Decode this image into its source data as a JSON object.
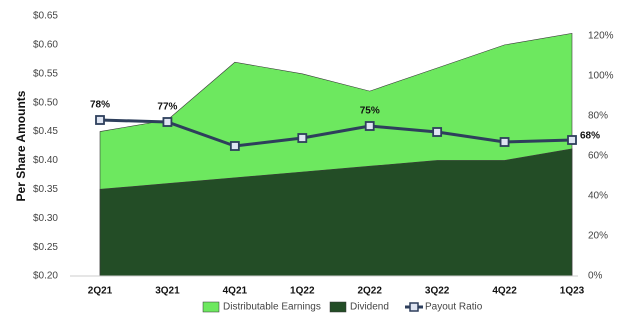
{
  "chart_data": {
    "type": "area",
    "y_label": "Per Share Amounts",
    "categories": [
      "2Q21",
      "3Q21",
      "4Q21",
      "1Q22",
      "2Q22",
      "3Q22",
      "4Q22",
      "1Q23"
    ],
    "series": [
      {
        "name": "Distributable Earnings",
        "type": "area",
        "color": "#6de85f",
        "values": [
          0.45,
          0.47,
          0.57,
          0.55,
          0.52,
          0.56,
          0.6,
          0.62
        ]
      },
      {
        "name": "Dividend",
        "type": "area",
        "color": "#234d26",
        "values": [
          0.35,
          0.36,
          0.37,
          0.38,
          0.39,
          0.4,
          0.4,
          0.42
        ]
      },
      {
        "name": "Payout Ratio",
        "type": "line",
        "axis": "y2",
        "color": "#2e3f5c",
        "values": [
          78,
          77,
          65,
          69,
          75,
          72,
          67,
          68
        ],
        "value_labels": [
          "78%",
          "77%",
          null,
          null,
          "75%",
          null,
          null,
          "68%"
        ]
      }
    ],
    "ylim": [
      0.2,
      0.65
    ],
    "yticks": [
      {
        "value": 0.2,
        "label": "$0.20"
      },
      {
        "value": 0.25,
        "label": "$0.25"
      },
      {
        "value": 0.3,
        "label": "$0.30"
      },
      {
        "value": 0.35,
        "label": "$0.35"
      },
      {
        "value": 0.4,
        "label": "$0.40"
      },
      {
        "value": 0.45,
        "label": "$0.45"
      },
      {
        "value": 0.5,
        "label": "$0.50"
      },
      {
        "value": 0.55,
        "label": "$0.55"
      },
      {
        "value": 0.6,
        "label": "$0.60"
      },
      {
        "value": 0.65,
        "label": "$0.65"
      }
    ],
    "y2lim": [
      0,
      130
    ],
    "y2ticks": [
      {
        "value": 0,
        "label": "0%"
      },
      {
        "value": 20,
        "label": "20%"
      },
      {
        "value": 40,
        "label": "40%"
      },
      {
        "value": 60,
        "label": "60%"
      },
      {
        "value": 80,
        "label": "80%"
      },
      {
        "value": 100,
        "label": "100%"
      },
      {
        "value": 120,
        "label": "120%"
      }
    ],
    "legend": "bottom"
  }
}
